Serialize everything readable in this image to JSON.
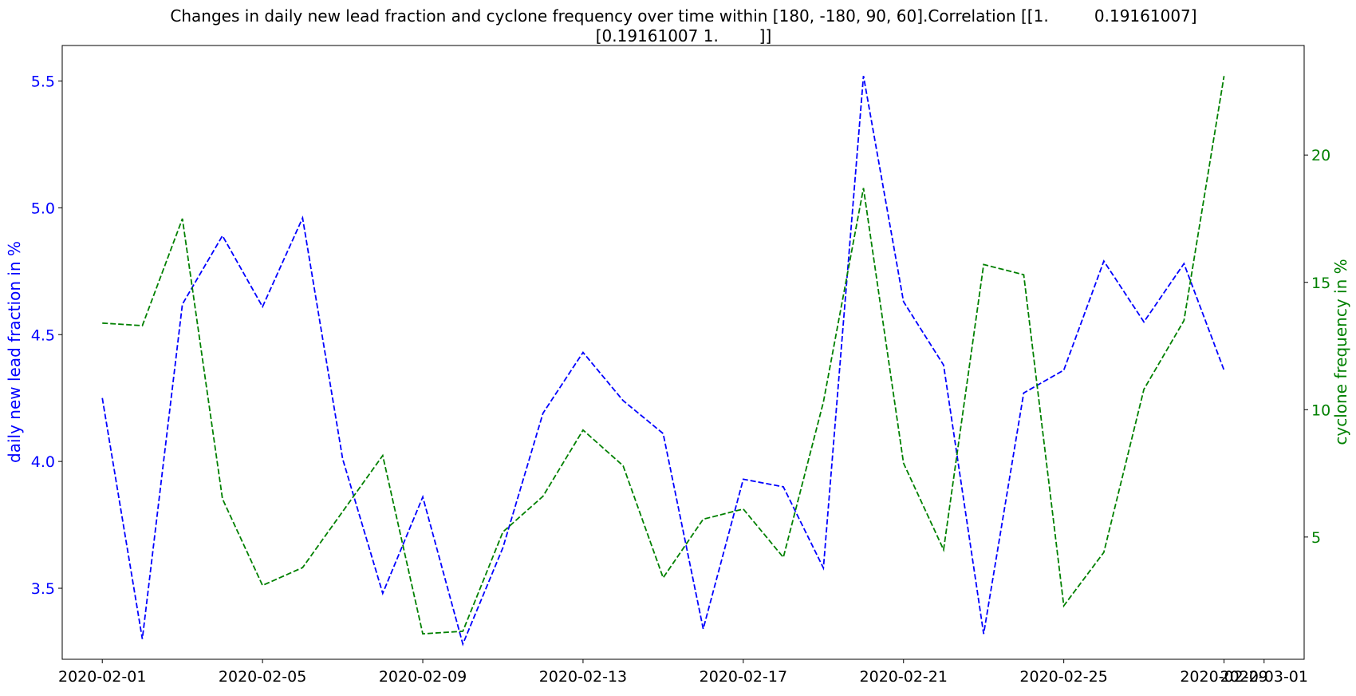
{
  "chart_data": {
    "type": "line",
    "title_lines": [
      "Changes in daily new lead fraction and cyclone frequency over time within [180, -180, 90, 60].Correlation [[1.         0.19161007]",
      "[0.19161007 1.        ]]"
    ],
    "x": [
      "2020-02-01",
      "2020-02-02",
      "2020-02-03",
      "2020-02-04",
      "2020-02-05",
      "2020-02-06",
      "2020-02-07",
      "2020-02-08",
      "2020-02-09",
      "2020-02-10",
      "2020-02-11",
      "2020-02-12",
      "2020-02-13",
      "2020-02-14",
      "2020-02-15",
      "2020-02-16",
      "2020-02-17",
      "2020-02-18",
      "2020-02-19",
      "2020-02-20",
      "2020-02-21",
      "2020-02-22",
      "2020-02-23",
      "2020-02-24",
      "2020-02-25",
      "2020-02-26",
      "2020-02-27",
      "2020-02-28",
      "2020-02-29"
    ],
    "x_ticks": [
      "2020-02-01",
      "2020-02-05",
      "2020-02-09",
      "2020-02-13",
      "2020-02-17",
      "2020-02-21",
      "2020-02-25",
      "2020-02-29",
      "2020-03-01"
    ],
    "x_tick_labels": [
      "2020-02-01",
      "2020-02-05",
      "2020-02-09",
      "2020-02-13",
      "2020-02-17",
      "2020-02-21",
      "2020-02-25",
      "2020-02-29",
      "2020-03-01"
    ],
    "xlim": [
      "2020-01-31",
      "2020-03-02"
    ],
    "left_axis": {
      "label": "daily new lead fraction in %",
      "color": "#0000ff",
      "ylim": [
        3.22,
        5.64
      ],
      "ticks": [
        3.5,
        4.0,
        4.5,
        5.0,
        5.5
      ],
      "tick_labels": [
        "3.5",
        "4.0",
        "4.5",
        "5.0",
        "5.5"
      ]
    },
    "right_axis": {
      "label": "cyclone frequency in %",
      "color": "#008000",
      "ylim": [
        0.2,
        24.3
      ],
      "ticks": [
        5,
        10,
        15,
        20
      ],
      "tick_labels": [
        "5",
        "10",
        "15",
        "20"
      ]
    },
    "series": [
      {
        "axis": "left",
        "color": "#0000ff",
        "line_style": "dashed",
        "values": [
          4.25,
          3.3,
          4.62,
          4.89,
          4.61,
          4.96,
          4.01,
          3.48,
          3.86,
          3.28,
          3.66,
          4.19,
          4.43,
          4.24,
          4.11,
          3.34,
          3.93,
          3.9,
          3.58,
          5.52,
          4.63,
          4.38,
          3.32,
          4.27,
          4.36,
          4.79,
          4.55,
          4.78,
          4.36
        ]
      },
      {
        "axis": "right",
        "color": "#008000",
        "line_style": "dashed",
        "values": [
          13.4,
          13.3,
          17.5,
          6.5,
          3.1,
          3.8,
          6.0,
          8.2,
          1.2,
          1.3,
          5.2,
          6.6,
          9.2,
          7.8,
          3.4,
          5.7,
          6.1,
          4.2,
          10.3,
          18.7,
          7.9,
          4.5,
          15.7,
          15.3,
          2.3,
          4.4,
          10.8,
          13.5,
          23.1
        ]
      }
    ],
    "grid": false,
    "legend": "none"
  }
}
